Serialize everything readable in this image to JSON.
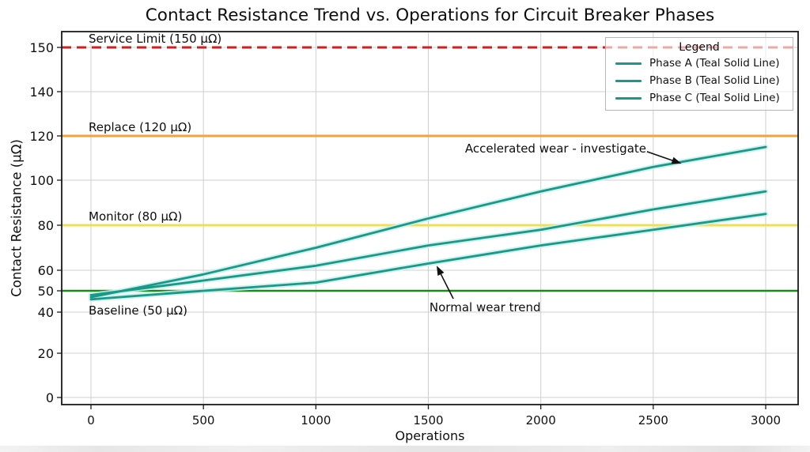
{
  "chart_data": {
    "type": "line",
    "title": "Contact Resistance Trend vs. Operations for Circuit Breaker Phases",
    "xlabel": "Operations",
    "ylabel": "Contact Resistance (μΩ)",
    "grid": true,
    "x_ticks": [
      0,
      500,
      1000,
      1500,
      2000,
      2500,
      3000
    ],
    "y_ticks": [
      0,
      20,
      40,
      50,
      60,
      80,
      100,
      120,
      140,
      150
    ],
    "xlim": [
      -130,
      3145
    ],
    "ylim": [
      -3,
      157
    ],
    "x": [
      0,
      500,
      1000,
      1500,
      2000,
      2500,
      3000
    ],
    "series": [
      {
        "name": "Phase A (Teal Solid Line)",
        "color": "#18998a",
        "style": "solid",
        "values": [
          47,
          58,
          70,
          83,
          95,
          106,
          115
        ]
      },
      {
        "name": "Phase B (Teal Solid Line)",
        "color": "#18998a",
        "style": "solid",
        "values": [
          48,
          55,
          62,
          71,
          78,
          87,
          95
        ]
      },
      {
        "name": "Phase C (Teal Solid Line)",
        "color": "#18998a",
        "style": "solid",
        "values": [
          46,
          50,
          54,
          63,
          71,
          78,
          85
        ]
      }
    ],
    "reference_lines": [
      {
        "label": "Service Limit (150 μΩ)",
        "value": 150,
        "color": "#cb2121",
        "style": "dashed",
        "label_side": "above"
      },
      {
        "label": "Replace (120 μΩ)",
        "value": 120,
        "color": "#f2a33a",
        "style": "solid",
        "label_side": "above"
      },
      {
        "label": "Monitor (80 μΩ)",
        "value": 80,
        "color": "#ede052",
        "style": "solid",
        "label_side": "above"
      },
      {
        "label": "Baseline (50 μΩ)",
        "value": 50,
        "color": "#178a17",
        "style": "solid",
        "label_side": "below"
      }
    ],
    "annotations": [
      {
        "text": "Accelerated wear - investigate",
        "text_at": [
          1663,
          112.5
        ],
        "arrow_from": [
          2472,
          112.9
        ],
        "arrow_to": [
          2625,
          107.5
        ]
      },
      {
        "text": "Normal wear trend",
        "text_at": [
          1505,
          40.4
        ],
        "arrow_from": [
          1611,
          46.3
        ],
        "arrow_to": [
          1537,
          62.0
        ]
      }
    ],
    "legend": {
      "title": "Legend",
      "position": "upper right",
      "entries": [
        "Phase A (Teal Solid Line)",
        "Phase B (Teal Solid Line)",
        "Phase C (Teal Solid Line)"
      ]
    },
    "colors": {
      "series_teal": "#18998a",
      "series_glow": "#c9efe9",
      "grid": "#cfcfcf",
      "axis": "#1a1a1a",
      "text": "#0d0d0d",
      "service_limit_red": "#cb2121",
      "replace_orange": "#f2a33a",
      "monitor_yellow": "#ede052",
      "baseline_green": "#178a17"
    }
  }
}
